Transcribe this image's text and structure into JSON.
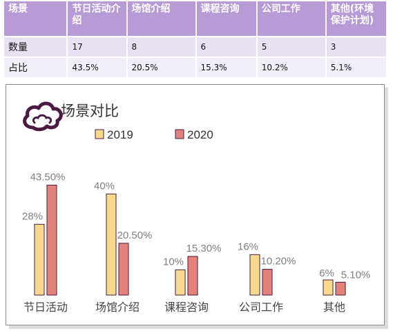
{
  "table": {
    "headers": [
      "场景",
      "节日活动介绍",
      "场馆介绍",
      "课程咨询",
      "公司工作",
      "其他(环境保护计划)"
    ],
    "rows": [
      [
        "数量",
        "17",
        "8",
        "6",
        "5",
        "3"
      ],
      [
        "占比",
        "43.5%",
        "20.5%",
        "15.3%",
        "10.2%",
        "5.1%"
      ]
    ]
  },
  "chart_data": {
    "type": "bar",
    "title": "场景对比",
    "categories": [
      "节日活动",
      "场馆介绍",
      "课程咨询",
      "公司工作",
      "其他"
    ],
    "series": [
      {
        "name": "2019",
        "values": [
          28,
          40,
          10,
          16,
          6
        ],
        "labels": [
          "28%",
          "40%",
          "10%",
          "16%",
          "6%"
        ],
        "color": "#f8d98e"
      },
      {
        "name": "2020",
        "values": [
          43.5,
          20.5,
          15.3,
          10.2,
          5.1
        ],
        "labels": [
          "43.50%",
          "20.50%",
          "15.30%",
          "10.20%",
          "5.10%"
        ],
        "color": "#e2837b"
      }
    ],
    "ylim": [
      0,
      45
    ],
    "grid": false,
    "legend": "top",
    "xlabel": "",
    "ylabel": ""
  },
  "colors": {
    "header_bg": "#b69bd6",
    "bar_outline": "#4a1a3a",
    "logo": "#4b1a42"
  },
  "icon": "cloud-icon"
}
